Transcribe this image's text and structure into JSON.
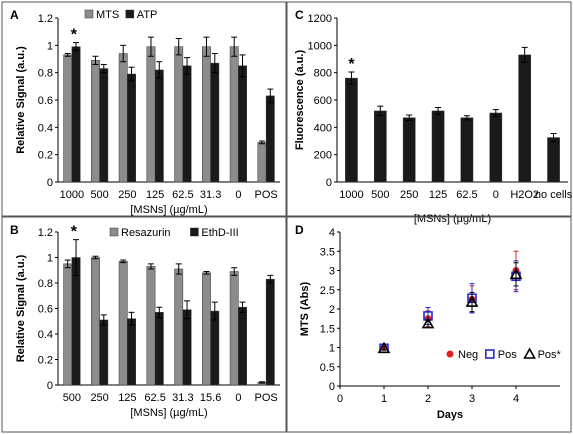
{
  "colors": {
    "light_bar": "#8c8c8c",
    "dark_bar": "#1a1a1a",
    "neg_marker": "#e02020",
    "pos_marker": "#2a2ad0",
    "pos_star_marker": "#000000",
    "error_bar": "#000000",
    "panel_border": "#555555"
  },
  "chart_data": [
    {
      "id": "A",
      "panel_label": "A",
      "type": "bar",
      "ylabel": "Relative Signal (a.u.)",
      "xlabel": "[MSNs] (µg/mL)",
      "ylim": [
        0,
        1.2
      ],
      "yticks": [
        0,
        0.2,
        0.4,
        0.6,
        0.8,
        1,
        1.2
      ],
      "categories": [
        "1000",
        "500",
        "250",
        "125",
        "62.5",
        "31.3",
        "0",
        "POS"
      ],
      "series": [
        {
          "name": "MTS",
          "color": "light",
          "values": [
            0.93,
            0.89,
            0.94,
            0.99,
            0.99,
            0.99,
            0.99,
            0.29
          ],
          "errors": [
            0.01,
            0.03,
            0.06,
            0.07,
            0.06,
            0.07,
            0.07,
            0.01
          ]
        },
        {
          "name": "ATP",
          "color": "dark",
          "values": [
            0.99,
            0.83,
            0.79,
            0.82,
            0.85,
            0.87,
            0.85,
            0.63
          ],
          "errors": [
            0.03,
            0.03,
            0.05,
            0.06,
            0.06,
            0.07,
            0.08,
            0.05
          ]
        }
      ],
      "annotations": [
        {
          "text": "*",
          "category": "1000"
        }
      ]
    },
    {
      "id": "B",
      "panel_label": "B",
      "type": "bar",
      "ylabel": "Relative Signal (a.u.)",
      "xlabel": "[MSNs] (µg/mL)",
      "ylim": [
        0,
        1.2
      ],
      "yticks": [
        0,
        0.2,
        0.4,
        0.6,
        0.8,
        1,
        1.2
      ],
      "categories": [
        "500",
        "250",
        "125",
        "62.5",
        "31.3",
        "15.6",
        "0",
        "POS"
      ],
      "series": [
        {
          "name": "Resazurin",
          "color": "light",
          "values": [
            0.95,
            1.0,
            0.97,
            0.93,
            0.91,
            0.88,
            0.89,
            0.02
          ],
          "errors": [
            0.03,
            0.01,
            0.01,
            0.02,
            0.04,
            0.01,
            0.03,
            0.005
          ]
        },
        {
          "name": "EthD-III",
          "color": "dark",
          "values": [
            1.0,
            0.51,
            0.52,
            0.57,
            0.59,
            0.58,
            0.61,
            0.83
          ],
          "errors": [
            0.14,
            0.04,
            0.05,
            0.04,
            0.07,
            0.07,
            0.04,
            0.03
          ]
        }
      ],
      "annotations": [
        {
          "text": "*",
          "category": "500"
        }
      ]
    },
    {
      "id": "C",
      "panel_label": "C",
      "type": "bar",
      "ylabel": "Fluorescence (a.u.)",
      "xlabel": "[MSNs] (µg/mL)",
      "ylim": [
        0,
        1200
      ],
      "yticks": [
        0,
        200,
        400,
        600,
        800,
        1000,
        1200
      ],
      "categories": [
        "1000",
        "500",
        "250",
        "125",
        "62.5",
        "0",
        "H2O2",
        "no cells"
      ],
      "series": [
        {
          "name": "",
          "color": "dark",
          "values": [
            760,
            520,
            470,
            520,
            470,
            505,
            930,
            325
          ],
          "errors": [
            45,
            35,
            20,
            25,
            15,
            25,
            55,
            30
          ]
        }
      ],
      "annotations": [
        {
          "text": "*",
          "category": "1000"
        }
      ]
    },
    {
      "id": "D",
      "panel_label": "D",
      "type": "scatter",
      "ylabel": "MTS (Abs)",
      "xlabel": "Days",
      "xlim": [
        0,
        5
      ],
      "xticks": [
        0,
        1,
        2,
        3,
        4
      ],
      "ylim": [
        0,
        4
      ],
      "yticks": [
        0,
        0.5,
        1,
        1.5,
        2,
        2.5,
        3,
        3.5,
        4
      ],
      "legend_position": "bottom-right",
      "series": [
        {
          "name": "Neg",
          "marker": "circle",
          "color": "neg",
          "x": [
            1,
            2,
            3,
            4
          ],
          "y": [
            1.0,
            1.75,
            2.25,
            3.0
          ],
          "errors": [
            0.05,
            0.2,
            0.35,
            0.5
          ]
        },
        {
          "name": "Pos",
          "marker": "square",
          "color": "pos",
          "x": [
            1,
            2,
            3,
            4
          ],
          "y": [
            0.98,
            1.82,
            2.28,
            2.85
          ],
          "errors": [
            0.05,
            0.22,
            0.38,
            0.4
          ]
        },
        {
          "name": "Pos*",
          "marker": "triangle",
          "color": "pos_star",
          "x": [
            1,
            2,
            3,
            4
          ],
          "y": [
            0.98,
            1.62,
            2.18,
            2.9
          ],
          "errors": [
            0.04,
            0.1,
            0.25,
            0.3
          ]
        }
      ]
    }
  ]
}
